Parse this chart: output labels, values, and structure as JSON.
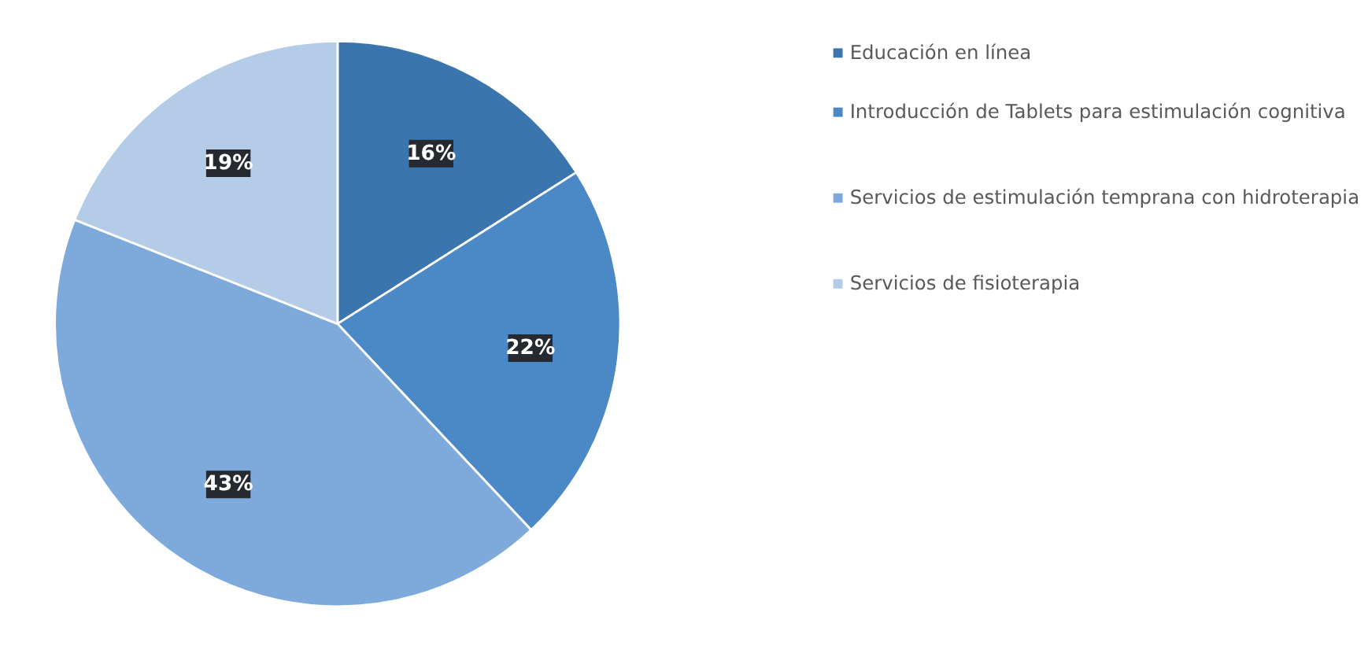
{
  "chart_data": {
    "type": "pie",
    "categories": [
      "Educación en línea",
      "Introducción de Tablets para estimulación cognitiva",
      "Servicios de estimulación temprana con hidroterapia",
      "Servicios de fisioterapia"
    ],
    "values": [
      16,
      22,
      43,
      19
    ],
    "colors": [
      "#3b75ad",
      "#4a88c6",
      "#7eaadb",
      "#b5cce8"
    ],
    "value_labels": [
      "16%",
      "22%",
      "43%",
      "19%"
    ],
    "legend": "right"
  }
}
